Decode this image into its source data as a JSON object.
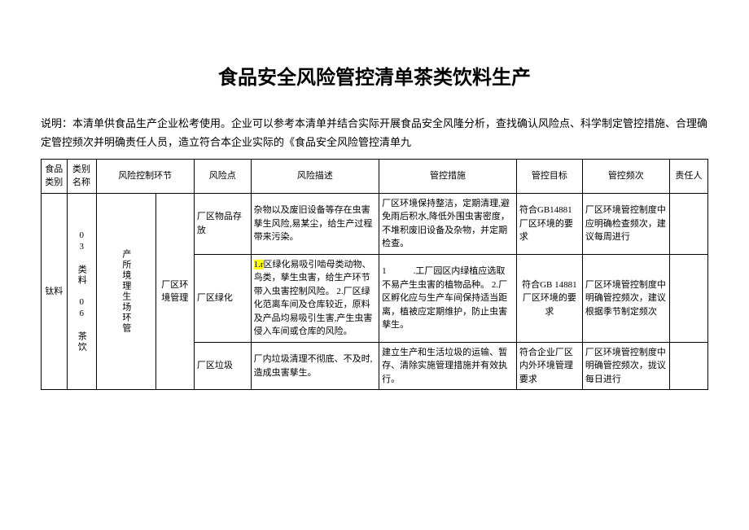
{
  "title": "食品安全风险管控清单茶类饮料生产",
  "description": "说明：本清单供食品生产企业松考使用。企业可以参考本清单并结合实际开展食品安全风隆分析，查找确认风险点、科学制定管控措施、合理确定管控频次并明确责任人员，造立符合本企业实际的《食品安全风险管控清单九",
  "headers": {
    "c0": "食品类别",
    "c1": "类别名称",
    "c2": "风险控制环节",
    "c3_empty": "",
    "c4": "风险点",
    "c5": "风险描述",
    "c6": "管控措施",
    "c7": "管控目标",
    "c8": "管控频次",
    "c9": "责任人"
  },
  "col0_val": "钛料",
  "col1_val": "03 类料 06 茶饮",
  "col2_val": "产所境理生场环管",
  "col3_val": "厂区环境管理",
  "rows": [
    {
      "r4": "厂区物品存放",
      "r5": "杂物以及废旧设备等存在虫害孳生风险,易某尘，给生产过程带来污染。",
      "r6": "厂区环境保持整洁，定期清理,避免雨后积水,降低外围虫害密度，不堆积废旧设备及杂物，并定期检查。",
      "r7": "符合GB14881厂区环境的要求",
      "r8": "厂区环境管控制度中应明确检查频次，建议每周进行"
    },
    {
      "r4": "厂区绿化",
      "r5_hl": "1.r",
      "r5_rest": "区绿化易吸引啮母类动物、鸟类，孳生虫害，给生产环节带入虫害控制风险。\n2.厂区绿化范离车间及仓库较近，原料及产品均易吸引生害,产生虫害侵入车间或仓库的风险。",
      "r6": "1　　　.工厂园区内绿植应选取不易产生虫害的植物品种。\n2.厂区孵化应与生产车间保持适当距离，植被应定期维护，防止虫害孳生。",
      "r7": "符合GB 14881厂区环境的要求",
      "r8": "厂区环境管控制度中明确管控频次，建议根据季节制定频次"
    },
    {
      "r4": "厂区垃圾",
      "r5": "厂内垃圾清理不彻底、不及时,造成虫害孳生。",
      "r6": "建立生产和生活垃圾的运输、暂存、清除实施管理措施并有效执行。",
      "r7": "符合企业厂区内外环境管理要求",
      "r8": "厂区环境管控制度中明确管控频次，拢议每日进行"
    }
  ]
}
